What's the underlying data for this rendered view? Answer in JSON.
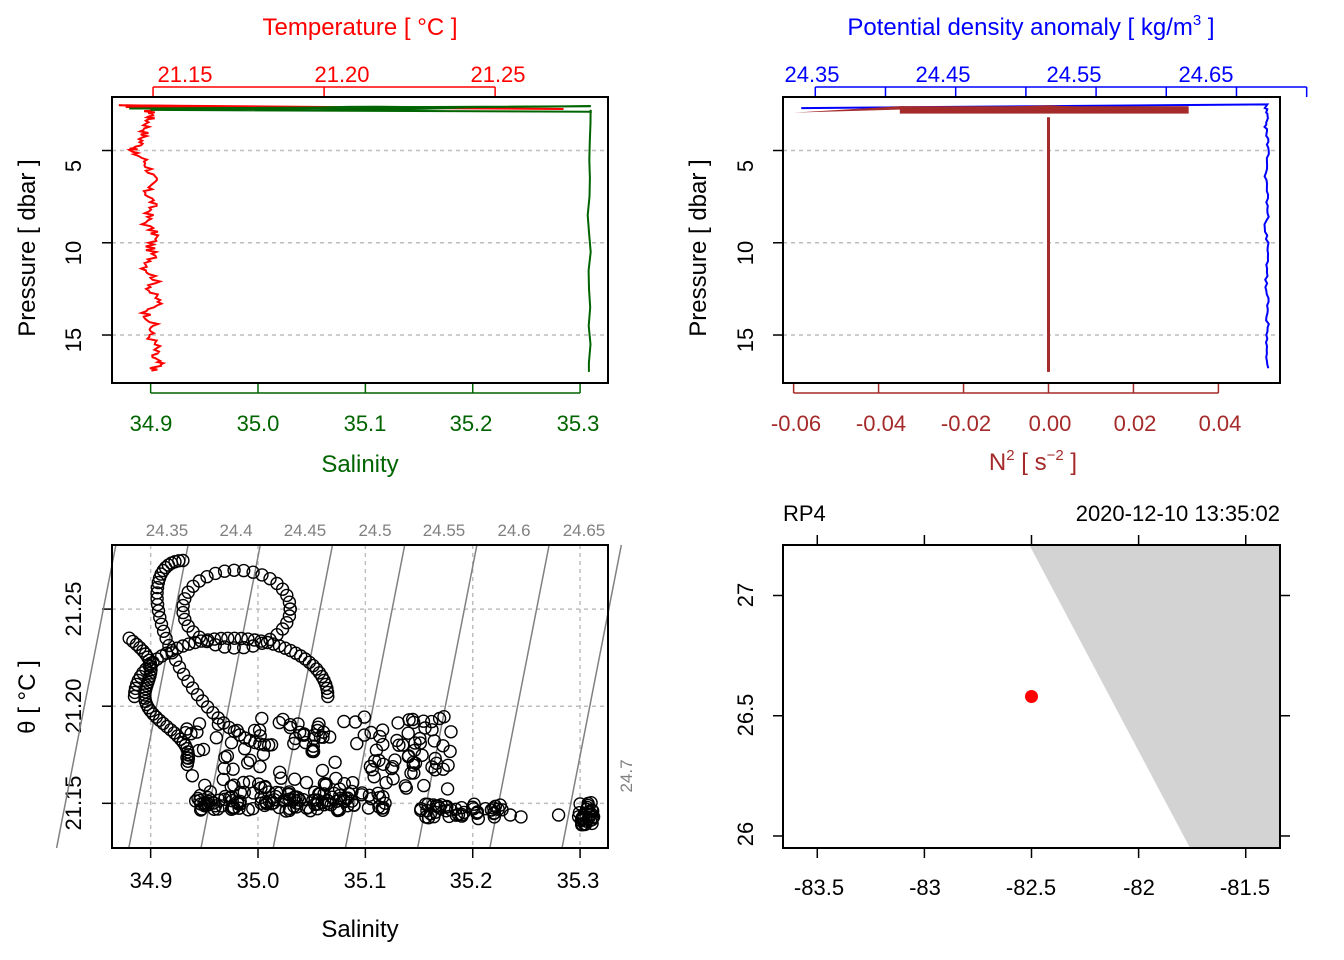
{
  "colors": {
    "temperature": "#FF0000",
    "salinity": "#006400",
    "density": "#0000FF",
    "n2": "#A52A2A",
    "grid": "#BEBEBE",
    "isopycnal": "#808080",
    "land": "#D3D3D3",
    "station": "#FF0000"
  },
  "chart_data": [
    {
      "id": "ts-profile",
      "type": "line",
      "top_axis": {
        "label": "Temperature [ °C ]",
        "ticks": [
          "21.15",
          "21.20",
          "21.25"
        ],
        "tick_values": [
          21.15,
          21.2,
          21.25
        ],
        "range": [
          21.138,
          21.283
        ]
      },
      "bottom_axis": {
        "label": "Salinity",
        "ticks": [
          "34.9",
          "35.0",
          "35.1",
          "35.2",
          "35.3"
        ],
        "tick_values": [
          34.9,
          35.0,
          35.1,
          35.2,
          35.3
        ],
        "range": [
          34.864,
          35.326
        ]
      },
      "y_axis": {
        "label": "Pressure [ dbar ]",
        "ticks": [
          "5",
          "10",
          "15"
        ],
        "tick_values": [
          5,
          10,
          15
        ],
        "range": [
          17.6,
          2.1
        ],
        "reversed": true
      },
      "grid": true,
      "series": [
        {
          "name": "Temperature",
          "axis": "top",
          "pressure": [
            2.8,
            3.0,
            3.3,
            3.8,
            4.3,
            4.8,
            5.0,
            5.4,
            6.0,
            6.6,
            7.2,
            7.8,
            8.4,
            9.0,
            9.6,
            10.2,
            10.8,
            11.4,
            12.0,
            12.6,
            13.2,
            13.8,
            14.4,
            15.0,
            15.6,
            16.2,
            16.6,
            17.0
          ],
          "values": [
            21.148,
            21.15,
            21.149,
            21.148,
            21.147,
            21.146,
            21.143,
            21.147,
            21.149,
            21.15,
            21.148,
            21.15,
            21.149,
            21.148,
            21.151,
            21.149,
            21.15,
            21.148,
            21.151,
            21.149,
            21.152,
            21.148,
            21.15,
            21.149,
            21.151,
            21.15,
            21.152,
            21.149
          ]
        },
        {
          "name": "Salinity",
          "axis": "bottom",
          "pressure": [
            2.8,
            3.5,
            4.5,
            5.5,
            6.5,
            7.5,
            8.5,
            9.5,
            10.5,
            11.5,
            12.5,
            13.5,
            14.5,
            15.5,
            16.5,
            17.0
          ],
          "values": [
            35.31,
            35.309,
            35.309,
            35.308,
            35.309,
            35.309,
            35.308,
            35.309,
            35.309,
            35.308,
            35.309,
            35.309,
            35.308,
            35.309,
            35.309,
            35.308
          ]
        }
      ]
    },
    {
      "id": "density-profile",
      "type": "line",
      "top_axis": {
        "label": "Potential density anomaly [ kg/m",
        "label_sup": "3",
        "label_end": " ]",
        "ticks": [
          "24.35",
          "24.45",
          "24.55",
          "24.65"
        ],
        "tick_values": [
          24.35,
          24.45,
          24.55,
          24.65
        ],
        "minor_tick_values": [
          24.4,
          24.5,
          24.6,
          24.7
        ],
        "range": [
          24.327,
          24.681
        ]
      },
      "bottom_axis": {
        "label": "N",
        "label_sup": "2",
        "label_mid": " [ s",
        "label_sup2": "−2",
        "label_end": " ]",
        "ticks": [
          "-0.06",
          "-0.04",
          "-0.02",
          "0.00",
          "0.02",
          "0.04"
        ],
        "tick_values": [
          -0.06,
          -0.04,
          -0.02,
          0.0,
          0.02,
          0.04
        ],
        "range": [
          -0.0625,
          0.0545
        ]
      },
      "y_axis": {
        "label": "Pressure [ dbar ]",
        "ticks": [
          "5",
          "10",
          "15"
        ],
        "tick_values": [
          5,
          10,
          15
        ],
        "range": [
          17.6,
          2.1
        ],
        "reversed": true
      },
      "grid": true,
      "series": [
        {
          "name": "Potential density anomaly",
          "axis": "top",
          "pressure": [
            2.7,
            3.0,
            3.6,
            4.2,
            5.0,
            6.0,
            7.0,
            8.0,
            9.0,
            10.0,
            11.0,
            12.0,
            13.0,
            14.0,
            15.0,
            16.0,
            17.0
          ],
          "values": [
            24.671,
            24.672,
            24.671,
            24.672,
            24.672,
            24.671,
            24.672,
            24.672,
            24.671,
            24.672,
            24.672,
            24.671,
            24.672,
            24.672,
            24.671,
            24.672,
            24.672
          ]
        },
        {
          "name": "N2",
          "axis": "bottom",
          "pressure": [
            3.2,
            5.0,
            7.0,
            9.0,
            11.0,
            13.0,
            15.0,
            17.0
          ],
          "values": [
            0.0,
            0.0,
            0.0,
            0.0,
            0.0,
            0.0,
            0.0,
            0.0
          ]
        }
      ]
    },
    {
      "id": "ts-diagram",
      "type": "scatter",
      "x_axis": {
        "label": "Salinity",
        "ticks": [
          "34.9",
          "35.0",
          "35.1",
          "35.2",
          "35.3"
        ],
        "tick_values": [
          34.9,
          35.0,
          35.1,
          35.2,
          35.3
        ],
        "range": [
          34.864,
          35.326
        ]
      },
      "y_axis": {
        "label": "θ [ °C ]",
        "ticks": [
          "21.15",
          "21.20",
          "21.25"
        ],
        "tick_values": [
          21.15,
          21.2,
          21.25
        ],
        "range": [
          21.127,
          21.283
        ]
      },
      "isopycnals": {
        "labels": [
          "24.35",
          "24.4",
          "24.45",
          "24.5",
          "24.55",
          "24.6",
          "24.65",
          "24.7"
        ],
        "values": [
          24.35,
          24.4,
          24.45,
          24.5,
          24.55,
          24.6,
          24.65,
          24.7
        ]
      },
      "grid": true,
      "clusters": [
        {
          "salinity": [
            34.88,
            34.96
          ],
          "theta": [
            21.19,
            21.27
          ]
        },
        {
          "salinity": [
            34.9,
            35.08
          ],
          "theta": [
            21.16,
            21.24
          ]
        },
        {
          "salinity": [
            34.92,
            35.18
          ],
          "theta": [
            21.147,
            21.175
          ]
        },
        {
          "salinity": [
            34.94,
            35.12
          ],
          "theta": [
            21.145,
            21.155
          ]
        },
        {
          "salinity": [
            35.15,
            35.23
          ],
          "theta": [
            21.14,
            21.15
          ]
        },
        {
          "salinity": [
            35.295,
            35.315
          ],
          "theta": [
            21.138,
            21.152
          ]
        }
      ]
    },
    {
      "id": "station-map",
      "type": "map",
      "label": "RP4",
      "datetime": "2020-12-10 13:35:02",
      "x_axis": {
        "ticks": [
          "-83.5",
          "-83",
          "-82.5",
          "-82",
          "-81.5"
        ],
        "tick_values": [
          -83.5,
          -83.0,
          -82.5,
          -82.0,
          -81.5
        ],
        "range": [
          -83.66,
          -81.34
        ]
      },
      "y_axis": {
        "ticks": [
          "26",
          "26.5",
          "27"
        ],
        "tick_values": [
          26.0,
          26.5,
          27.0
        ],
        "range": [
          25.95,
          27.21
        ]
      },
      "station": {
        "lon": -82.5,
        "lat": 26.58
      },
      "land": [
        {
          "lon": -82.51,
          "lat": 27.21
        },
        {
          "lon": -81.34,
          "lat": 27.21
        },
        {
          "lon": -81.34,
          "lat": 25.95
        },
        {
          "lon": -81.76,
          "lat": 25.95
        }
      ]
    }
  ]
}
